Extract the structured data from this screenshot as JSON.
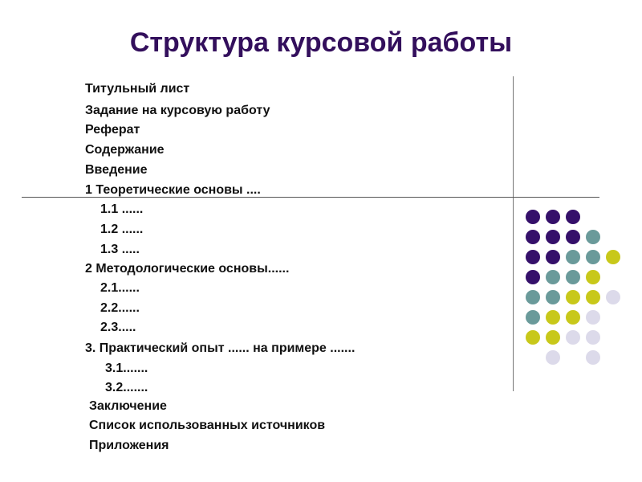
{
  "slide": {
    "title": "Структура курсовой работы",
    "toc": [
      {
        "text": "Титульный лист"
      },
      {
        "text": "Задание на курсовую работу"
      },
      {
        "text": "Реферат"
      },
      {
        "text": "Содержание"
      },
      {
        "text": "Введение"
      },
      {
        "text": "1 Теоретические основы ...."
      },
      {
        "text": "1.1 ......"
      },
      {
        "text": "1.2 ......"
      },
      {
        "text": "1.3 ....."
      },
      {
        "text": "2 Методологические основы......"
      },
      {
        "text": "2.1......"
      },
      {
        "text": "2.2......"
      },
      {
        "text": "2.3....."
      },
      {
        "text": "3. Практический опыт ...... на примере ......."
      },
      {
        "text": "3.1......."
      },
      {
        "text": "3.2......."
      },
      {
        "text": "Заключение"
      },
      {
        "text": "Список использованных источников"
      },
      {
        "text": "Приложения"
      }
    ]
  },
  "colors": {
    "title": "#330f5c",
    "dark_purple": "#35106a",
    "teal": "#6a9a9a",
    "olive": "#c8c81a",
    "lavender": "#dcdaea"
  },
  "decoration": {
    "dot_grid": [
      [
        "dark_purple",
        "dark_purple",
        "dark_purple",
        null,
        null
      ],
      [
        "dark_purple",
        "dark_purple",
        "dark_purple",
        "teal",
        null
      ],
      [
        "dark_purple",
        "dark_purple",
        "teal",
        "teal",
        "olive"
      ],
      [
        "dark_purple",
        "teal",
        "teal",
        "olive",
        null
      ],
      [
        "teal",
        "teal",
        "olive",
        "olive",
        "lavender"
      ],
      [
        "teal",
        "olive",
        "olive",
        "lavender",
        null
      ],
      [
        "olive",
        "olive",
        "lavender",
        "lavender",
        null
      ],
      [
        null,
        "lavender",
        null,
        "lavender",
        null
      ]
    ]
  }
}
